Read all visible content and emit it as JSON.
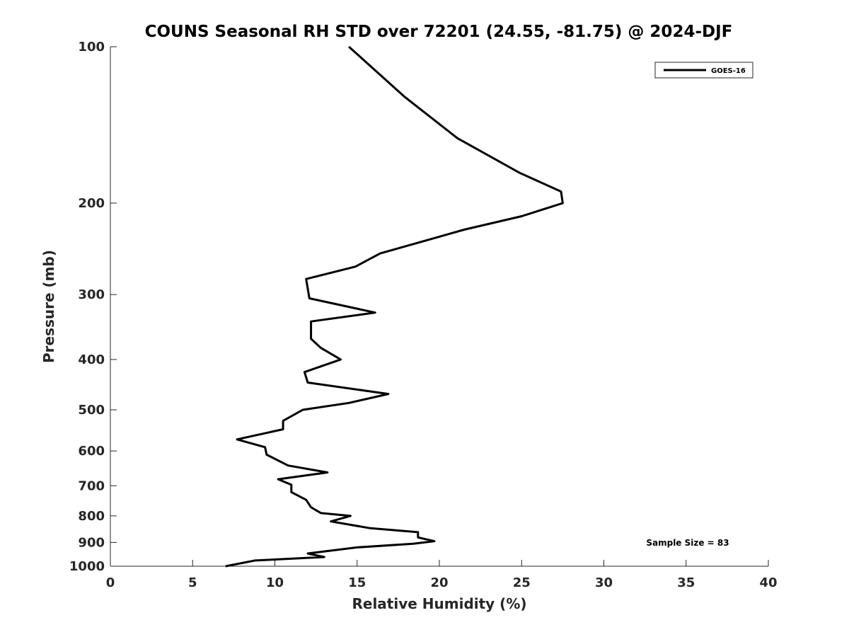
{
  "chart_data": {
    "type": "line",
    "title": "COUNS Seasonal RH STD over 72201 (24.55, -81.75) @ 2024-DJF",
    "xlabel": "Relative Humidity (%)",
    "ylabel": "Pressure (mb)",
    "xlim": [
      0,
      40
    ],
    "ylim": [
      100,
      1000
    ],
    "yscale": "log",
    "yreversed": true,
    "xticks": [
      0,
      5,
      10,
      15,
      20,
      25,
      30,
      35,
      40
    ],
    "yticks": [
      100,
      200,
      300,
      400,
      500,
      600,
      700,
      800,
      900,
      1000
    ],
    "grid": false,
    "legend_position": "top-right",
    "annotation": "Sample Size = 83",
    "series": [
      {
        "name": "GOES-16",
        "color": "#000000",
        "points": [
          [
            14.5,
            100
          ],
          [
            17.9,
            125
          ],
          [
            21.1,
            150
          ],
          [
            24.9,
            175
          ],
          [
            27.4,
            190
          ],
          [
            27.5,
            200
          ],
          [
            25.0,
            212
          ],
          [
            21.5,
            225
          ],
          [
            16.4,
            250
          ],
          [
            14.9,
            265
          ],
          [
            11.9,
            280
          ],
          [
            12.1,
            305
          ],
          [
            16.1,
            325
          ],
          [
            12.2,
            338
          ],
          [
            12.2,
            365
          ],
          [
            12.8,
            380
          ],
          [
            14.0,
            400
          ],
          [
            11.8,
            423
          ],
          [
            12.0,
            443
          ],
          [
            16.9,
            466
          ],
          [
            14.5,
            485
          ],
          [
            11.7,
            500
          ],
          [
            10.5,
            525
          ],
          [
            10.5,
            545
          ],
          [
            7.7,
            570
          ],
          [
            9.4,
            590
          ],
          [
            9.5,
            610
          ],
          [
            10.8,
            640
          ],
          [
            13.2,
            660
          ],
          [
            10.2,
            680
          ],
          [
            11.0,
            697
          ],
          [
            11.0,
            720
          ],
          [
            11.9,
            745
          ],
          [
            12.2,
            770
          ],
          [
            12.8,
            790
          ],
          [
            14.6,
            800
          ],
          [
            13.4,
            820
          ],
          [
            15.8,
            845
          ],
          [
            18.7,
            860
          ],
          [
            18.7,
            880
          ],
          [
            19.7,
            895
          ],
          [
            18.4,
            905
          ],
          [
            15.0,
            920
          ],
          [
            12.0,
            945
          ],
          [
            13.0,
            960
          ],
          [
            8.8,
            975
          ],
          [
            7.0,
            1000
          ]
        ]
      }
    ]
  }
}
